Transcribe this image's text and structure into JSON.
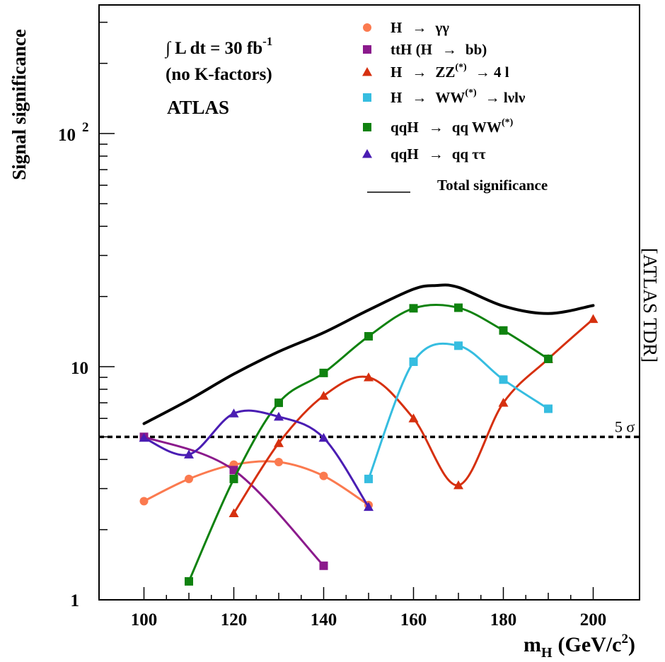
{
  "chart_data": {
    "type": "line",
    "ylabel": "Signal significance",
    "xlabel": {
      "main": "m",
      "sub": "H",
      "unit": "(GeV/c",
      "unit_sup": "2",
      "unit_close": ")"
    },
    "x_range": [
      90,
      210
    ],
    "y_range": [
      1,
      400
    ],
    "y_scale": "log",
    "x_ticks": [
      100,
      120,
      140,
      160,
      180,
      200
    ],
    "x_tick_labels": [
      "100",
      "120",
      "140",
      "160",
      "180",
      "200"
    ],
    "y_tick_labels": {
      "one": "1",
      "ten": "10",
      "hundred_base": "10",
      "hundred_exp": "2"
    },
    "annotations": {
      "lumi_prefix": "∫ L dt = 30 fb",
      "lumi_exp": "-1",
      "kfactors": "(no K-factors)",
      "experiment": "ATLAS",
      "side_tag": "[ATLAS TDR]",
      "sigma_label": "5 σ"
    },
    "threshold": 5,
    "legend_position": "top-right",
    "series": [
      {
        "name": "H → γγ",
        "name_parts": [
          "H",
          "→",
          "γγ",
          "",
          ""
        ],
        "marker": "circle",
        "color": "#fb7a4f",
        "x": [
          100,
          110,
          120,
          130,
          140,
          150
        ],
        "y": [
          2.65,
          3.3,
          3.8,
          3.9,
          3.4,
          2.55
        ]
      },
      {
        "name": "ttH (H → bb)",
        "name_parts": [
          "ttH (H",
          "→",
          "bb)",
          "",
          ""
        ],
        "marker": "square",
        "color": "#8b1a8c",
        "x": [
          100,
          120,
          140
        ],
        "y": [
          5.0,
          3.6,
          1.4
        ]
      },
      {
        "name": "H → ZZ(*) → 4 l",
        "name_parts": [
          "H",
          "→",
          "ZZ",
          "(*)",
          "→  4 l"
        ],
        "marker": "triangle",
        "color": "#d6300f",
        "x": [
          120,
          130,
          140,
          150,
          160,
          170,
          180,
          190,
          200
        ],
        "y": [
          2.35,
          4.7,
          7.5,
          9.0,
          6.0,
          3.1,
          7.0,
          10.8,
          16.0
        ]
      },
      {
        "name": "H → WW(*) → lνlν",
        "name_parts": [
          "H",
          "→",
          "WW",
          "(*)",
          "→  lνlν"
        ],
        "marker": "square",
        "color": "#36bde0",
        "x": [
          150,
          160,
          170,
          180,
          190
        ],
        "y": [
          3.3,
          10.5,
          12.3,
          8.8,
          6.6
        ]
      },
      {
        "name": "qqH → qq WW(*)",
        "name_parts": [
          "qqH",
          "→",
          "qq WW",
          "(*)",
          ""
        ],
        "marker": "square",
        "color": "#0f820f",
        "x": [
          110,
          120,
          130,
          140,
          150,
          160,
          170,
          180,
          190
        ],
        "y": [
          1.2,
          3.3,
          7.0,
          9.4,
          13.5,
          17.8,
          17.9,
          14.3,
          10.8
        ]
      },
      {
        "name": "qqH → qq ττ",
        "name_parts": [
          "qqH",
          "→",
          "qq ττ",
          "",
          ""
        ],
        "marker": "triangle",
        "color": "#4a1db3",
        "x": [
          100,
          110,
          120,
          130,
          140,
          150
        ],
        "y": [
          4.95,
          4.2,
          6.3,
          6.1,
          4.95,
          2.5
        ]
      },
      {
        "name": "Total significance",
        "name_parts": [
          "Total significance",
          "",
          "",
          "",
          ""
        ],
        "marker": "none",
        "color": "#000000",
        "x": [
          100,
          110,
          120,
          130,
          140,
          150,
          160,
          165,
          170,
          180,
          190,
          200
        ],
        "y": [
          5.7,
          7.2,
          9.3,
          11.6,
          14.0,
          17.5,
          21.5,
          22.3,
          21.9,
          18.2,
          16.9,
          18.3
        ]
      }
    ]
  }
}
